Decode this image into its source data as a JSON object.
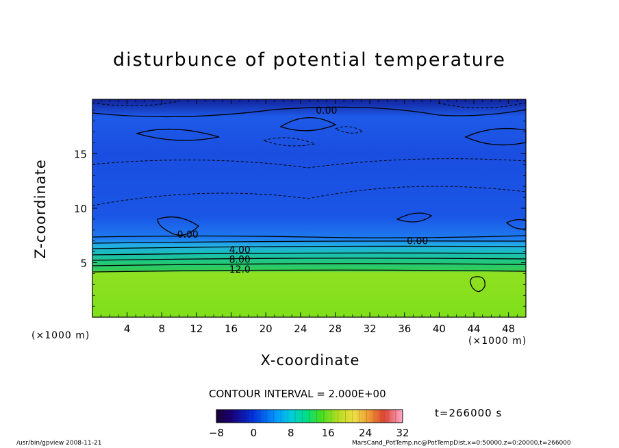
{
  "figure": {
    "contour_interval": "CONTOUR INTERVAL = 2.000E+00",
    "time": "t=266000 s",
    "x_unit_left": "(×1000 m)",
    "x_unit_right": "(×1000 m)",
    "footer_left": "/usr/bin/gpview   2008-11-21",
    "footer_right": "MarsCand_PotTemp.nc@PotTempDist,x=0:50000,z=0:20000,t=266000"
  },
  "chart_data": {
    "type": "heatmap",
    "title": "disturbunce of potential temperature",
    "xlabel": "X-coordinate",
    "ylabel": "Z-coordinate",
    "xlim": [
      0,
      50
    ],
    "ylim": [
      0,
      20
    ],
    "xticks": [
      4,
      8,
      12,
      16,
      20,
      24,
      28,
      32,
      36,
      40,
      44,
      48
    ],
    "yticks": [
      5,
      10,
      15
    ],
    "contour_labels": [
      {
        "text": "0.00",
        "x": 27,
        "z": 19
      },
      {
        "text": "0.00",
        "x": 37.5,
        "z": 7.0
      },
      {
        "text": "0.00",
        "x": 11,
        "z": 7.6
      },
      {
        "text": "4.00",
        "x": 17,
        "z": 6.2
      },
      {
        "text": "8.00",
        "x": 17,
        "z": 5.3
      },
      {
        "text": "12.0",
        "x": 17,
        "z": 4.4
      }
    ],
    "colorbar": {
      "min": -8,
      "max": 32,
      "ticks": [
        -8,
        0,
        8,
        16,
        24,
        32
      ],
      "colors": [
        "#1a0033",
        "#1a0066",
        "#0000aa",
        "#0022cc",
        "#0044ee",
        "#0066ff",
        "#0088ff",
        "#00aaff",
        "#00ccee",
        "#00ddcc",
        "#00ddaa",
        "#00dd77",
        "#22dd44",
        "#55dd22",
        "#88dd22",
        "#aadd22",
        "#ccdd33",
        "#dddd44",
        "#eecc44",
        "#eeaa44",
        "#ee8833",
        "#ee6633",
        "#dd4433",
        "#dd3355",
        "#ee6688",
        "#ffaacc"
      ]
    },
    "field_profile": [
      {
        "z": 0,
        "value": 17
      },
      {
        "z": 4.2,
        "value": 17
      },
      {
        "z": 4.5,
        "value": 12
      },
      {
        "z": 5.3,
        "value": 8
      },
      {
        "z": 6.2,
        "value": 4
      },
      {
        "z": 7.0,
        "value": 0
      },
      {
        "z": 12,
        "value": -4
      },
      {
        "z": 19,
        "value": -4
      },
      {
        "z": 20,
        "value": -6
      }
    ]
  }
}
